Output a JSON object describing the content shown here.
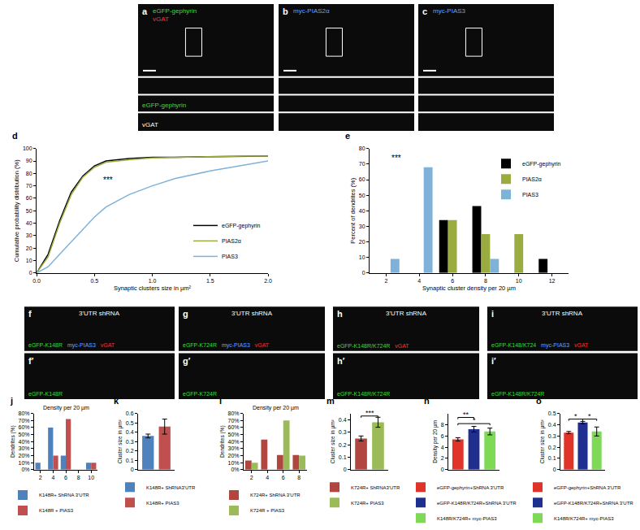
{
  "chart_data": [
    {
      "panel": "d",
      "type": "line",
      "x_label": "Synaptic clusters size in µm²",
      "y_label": "Cumulative probability distribution (%)",
      "x": [
        0,
        0.1,
        0.2,
        0.3,
        0.4,
        0.5,
        0.6,
        0.8,
        1.0,
        1.2,
        1.5,
        1.8,
        2.0
      ],
      "series": [
        {
          "name": "eGFP-gephyrin",
          "color": "#000000",
          "values": [
            0,
            15,
            42,
            65,
            78,
            86,
            90,
            92,
            93,
            93,
            93.5,
            94,
            94
          ]
        },
        {
          "name": "PIAS2α",
          "color": "#9aab3f",
          "values": [
            0,
            13,
            40,
            63,
            77,
            85,
            89,
            91,
            92.5,
            93,
            93.5,
            94,
            94
          ]
        },
        {
          "name": "PIAS3",
          "color": "#7fb2d8",
          "values": [
            0,
            5,
            15,
            25,
            35,
            45,
            53,
            63,
            70,
            76,
            82,
            87,
            90
          ]
        }
      ],
      "xlim": [
        0,
        2
      ],
      "xticks": [
        {
          "value": 0,
          "label": "0.0"
        },
        {
          "value": 0.5,
          "label": "0.5"
        },
        {
          "value": 1,
          "label": "1.0"
        },
        {
          "value": 1.5,
          "label": "1.5"
        },
        {
          "value": 2,
          "label": "2.0"
        }
      ],
      "ylim": [
        0,
        100
      ],
      "yticks": [
        0,
        10,
        20,
        30,
        40,
        50,
        60,
        70,
        80,
        90,
        100
      ],
      "grid": false,
      "legend": "lower right",
      "annotations": [
        {
          "text": "***",
          "x": 0.62,
          "y": 70
        }
      ]
    },
    {
      "panel": "e",
      "type": "bar",
      "x_label": "Synaptic cluster density per 20 µm",
      "y_label": "Percent of dendrites (%)",
      "x": [
        2,
        4,
        6,
        8,
        10,
        12
      ],
      "series": [
        {
          "name": "eGFP-gephyrin",
          "color": "#000000",
          "values": [
            null,
            null,
            34,
            43,
            null,
            9
          ]
        },
        {
          "name": "PIAS2α",
          "color": "#9aab3f",
          "values": [
            null,
            null,
            34,
            25,
            25,
            null
          ]
        },
        {
          "name": "PIAS3",
          "color": "#7fb2d8",
          "values": [
            9,
            68,
            null,
            9,
            null,
            null
          ]
        }
      ],
      "xlim": [
        1,
        13
      ],
      "xticks": [
        2,
        4,
        6,
        8,
        10,
        12
      ],
      "ylim": [
        0,
        80
      ],
      "yticks": [
        0,
        10,
        20,
        30,
        40,
        50,
        60,
        70,
        80
      ],
      "grid": false,
      "legend": "upper right",
      "annotations": [
        {
          "text": "***",
          "x": 2.6,
          "y": 70
        }
      ]
    },
    {
      "panel": "j",
      "type": "bar",
      "title": "Density per 20 µm",
      "y_label": "Dendrites (%)",
      "categories": [
        "2",
        "4",
        "6",
        "8",
        "10"
      ],
      "series": [
        {
          "name": "K148R+ ShRNA 3'UTR",
          "color": "#4f81bd",
          "values": [
            10,
            60,
            20,
            null,
            10
          ]
        },
        {
          "name": "K148R + PIAS3",
          "color": "#c0504d",
          "values": [
            null,
            20,
            72,
            null,
            10
          ]
        }
      ],
      "ylim": [
        0,
        80
      ],
      "yticks": [
        {
          "value": 0,
          "label": "0%"
        },
        {
          "value": 10,
          "label": "10%"
        },
        {
          "value": 20,
          "label": "20%"
        },
        {
          "value": 30,
          "label": "30%"
        },
        {
          "value": 40,
          "label": "40%"
        },
        {
          "value": 50,
          "label": "50%"
        },
        {
          "value": 60,
          "label": "60%"
        },
        {
          "value": 70,
          "label": "70%"
        },
        {
          "value": 80,
          "label": "80%"
        }
      ],
      "grid": false,
      "legend": "bottom"
    },
    {
      "panel": "k",
      "type": "bar",
      "y_label": "Cluster size in µm²",
      "series": [
        {
          "name": "K148R+ ShRNA3'UTR",
          "color": "#4f81bd",
          "values": [
            0.36
          ],
          "errors": [
            0.02
          ]
        },
        {
          "name": "K148R+ PIAS3",
          "color": "#c0504d",
          "values": [
            0.46
          ],
          "errors": [
            0.08
          ]
        }
      ],
      "ylim": [
        0,
        0.6
      ],
      "yticks": [
        0,
        0.1,
        0.2,
        0.3,
        0.4,
        0.5,
        0.6
      ],
      "grid": false,
      "legend": "bottom",
      "tick_labels": "y"
    },
    {
      "panel": "l",
      "type": "bar",
      "title": "Density per 20 µm",
      "y_label": "Dendrites (%)",
      "categories": [
        "2",
        "4",
        "6",
        "8"
      ],
      "series": [
        {
          "name": "K724R+ ShRNA 3'UTR",
          "color": "#b0463f",
          "values": [
            13,
            43,
            21,
            21
          ]
        },
        {
          "name": "K724R + PIAS3",
          "color": "#9bbb59",
          "values": [
            10,
            null,
            70,
            20
          ]
        }
      ],
      "ylim": [
        0,
        80
      ],
      "yticks": [
        {
          "value": 0,
          "label": "0%"
        },
        {
          "value": 10,
          "label": "10%"
        },
        {
          "value": 20,
          "label": "20%"
        },
        {
          "value": 30,
          "label": "30%"
        },
        {
          "value": 40,
          "label": "40%"
        },
        {
          "value": 50,
          "label": "50%"
        },
        {
          "value": 60,
          "label": "60%"
        },
        {
          "value": 70,
          "label": "70%"
        },
        {
          "value": 80,
          "label": "80%"
        }
      ],
      "grid": false,
      "legend": "bottom"
    },
    {
      "panel": "m",
      "type": "bar",
      "y_label": "Cluster size in µm²",
      "series": [
        {
          "name": "K724R+ ShRNA3'UTR",
          "color": "#b0463f",
          "values": [
            0.25
          ],
          "errors": [
            0.02
          ]
        },
        {
          "name": "K724R+ PIAS3",
          "color": "#9bbb59",
          "values": [
            0.38
          ],
          "errors": [
            0.04
          ]
        }
      ],
      "ylim": [
        0,
        0.45
      ],
      "yticks": [
        0,
        0.1,
        0.2,
        0.3,
        0.4
      ],
      "grid": false,
      "legend": "bottom",
      "tick_labels": "y",
      "annotations": [
        {
          "text": "***",
          "from": 0,
          "to": 1,
          "y": 0.43
        }
      ]
    },
    {
      "panel": "n",
      "type": "bar",
      "y_label": "Density per 20 µm",
      "series": [
        {
          "name": "eGFP-gephyrin+ShRNA 3'UTR",
          "color": "#e0342b",
          "values": [
            5.4
          ],
          "errors": [
            0.3
          ]
        },
        {
          "name": "eGFP-K148R/K724R+ShRNA 3'UTR",
          "color": "#1f2f8f",
          "values": [
            7.2
          ],
          "errors": [
            0.5
          ]
        },
        {
          "name": "K148R/K724R+ myc-PIAS3",
          "color": "#7ed957",
          "values": [
            6.8
          ],
          "errors": [
            0.6
          ]
        }
      ],
      "ylim": [
        0,
        10
      ],
      "yticks": [
        0,
        2,
        4,
        6,
        8
      ],
      "grid": false,
      "legend": "bottom",
      "tick_labels": "y",
      "annotations": [
        {
          "text": "**",
          "from": 0,
          "to": 1,
          "y": 9.3
        },
        {
          "text": "*",
          "from": 0,
          "to": 2,
          "y": 8.2
        }
      ]
    },
    {
      "panel": "o",
      "type": "bar",
      "y_label": "Cluster size in µm²",
      "series": [
        {
          "name": "eGFP-gephyrin+ShRNA 3'UTR",
          "color": "#e0342b",
          "values": [
            0.33
          ],
          "errors": [
            0.01
          ]
        },
        {
          "name": "eGFP-K148R/K724R+ShRNA 3'UTR",
          "color": "#1f2f8f",
          "values": [
            0.42
          ],
          "errors": [
            0.01
          ]
        },
        {
          "name": "K148R/K724R+ myc-PIAS3",
          "color": "#7ed957",
          "values": [
            0.34
          ],
          "errors": [
            0.04
          ]
        }
      ],
      "ylim": [
        0,
        0.5
      ],
      "yticks": [
        0,
        0.1,
        0.2,
        0.3,
        0.4,
        0.5
      ],
      "grid": false,
      "legend": "bottom",
      "tick_labels": "y",
      "annotations": [
        {
          "text": "*",
          "from": 0,
          "to": 1,
          "y": 0.45
        },
        {
          "text": "*",
          "from": 1,
          "to": 2,
          "y": 0.45
        }
      ]
    }
  ],
  "top_images": [
    {
      "panel": "a",
      "top": [
        {
          "text": "eGFP-gephyrin",
          "color": "#3ddc3d"
        },
        {
          "text": "vGAT",
          "color": "#ff3030"
        }
      ],
      "strips": [
        [],
        [
          {
            "text": "eGFP-gephyrin",
            "color": "#3ddc3d"
          }
        ],
        [
          {
            "text": "vGAT",
            "color": "#ffffff"
          }
        ]
      ]
    },
    {
      "panel": "b",
      "top": [
        {
          "text": "myc-PIAS2α",
          "color": "#6aa0ff"
        }
      ],
      "strips": [
        [],
        [],
        []
      ]
    },
    {
      "panel": "c",
      "top": [
        {
          "text": "myc-PIAS3",
          "color": "#6aa0ff"
        }
      ],
      "strips": [
        [],
        [],
        []
      ]
    }
  ],
  "row_images": [
    {
      "panel": "f",
      "top": "3'UTR shRNA",
      "bottom": [
        {
          "text": "eGFP-K148R",
          "color": "#3ddc3d"
        },
        {
          "text": "myc-PIAS3",
          "color": "#6aa0ff"
        },
        {
          "text": "vGAT",
          "color": "#ff3030"
        }
      ],
      "sub_panel": "f′",
      "sub_bottom": [
        {
          "text": "eGFP-K148R",
          "color": "#3ddc3d"
        }
      ]
    },
    {
      "panel": "g",
      "top": "3'UTR shRNA",
      "bottom": [
        {
          "text": "eGFP-K724R",
          "color": "#3ddc3d"
        },
        {
          "text": "myc-PIAS3",
          "color": "#6aa0ff"
        },
        {
          "text": "vGAT",
          "color": "#ff3030"
        }
      ],
      "sub_panel": "g′",
      "sub_bottom": [
        {
          "text": "eGFP-K724R",
          "color": "#3ddc3d"
        }
      ]
    },
    {
      "panel": "h",
      "top": "3'UTR shRNA",
      "bottom": [
        {
          "text": "eGFP-K148R/K724R",
          "color": "#3ddc3d"
        },
        {
          "text": "vGAT",
          "color": "#ff3030"
        }
      ],
      "sub_panel": "h′",
      "sub_bottom": [
        {
          "text": "eGFP-K148R/K724R",
          "color": "#3ddc3d"
        }
      ]
    },
    {
      "panel": "i",
      "top": "3'UTR shRNA",
      "bottom": [
        {
          "text": "eGFP-K148/K724",
          "color": "#3ddc3d"
        },
        {
          "text": "myc-PIAS3",
          "color": "#6aa0ff"
        },
        {
          "text": "vGAT",
          "color": "#ff3030"
        }
      ],
      "sub_panel": "i′",
      "sub_bottom": [
        {
          "text": "eGFP-K148R/K724R",
          "color": "#3ddc3d"
        }
      ]
    }
  ]
}
